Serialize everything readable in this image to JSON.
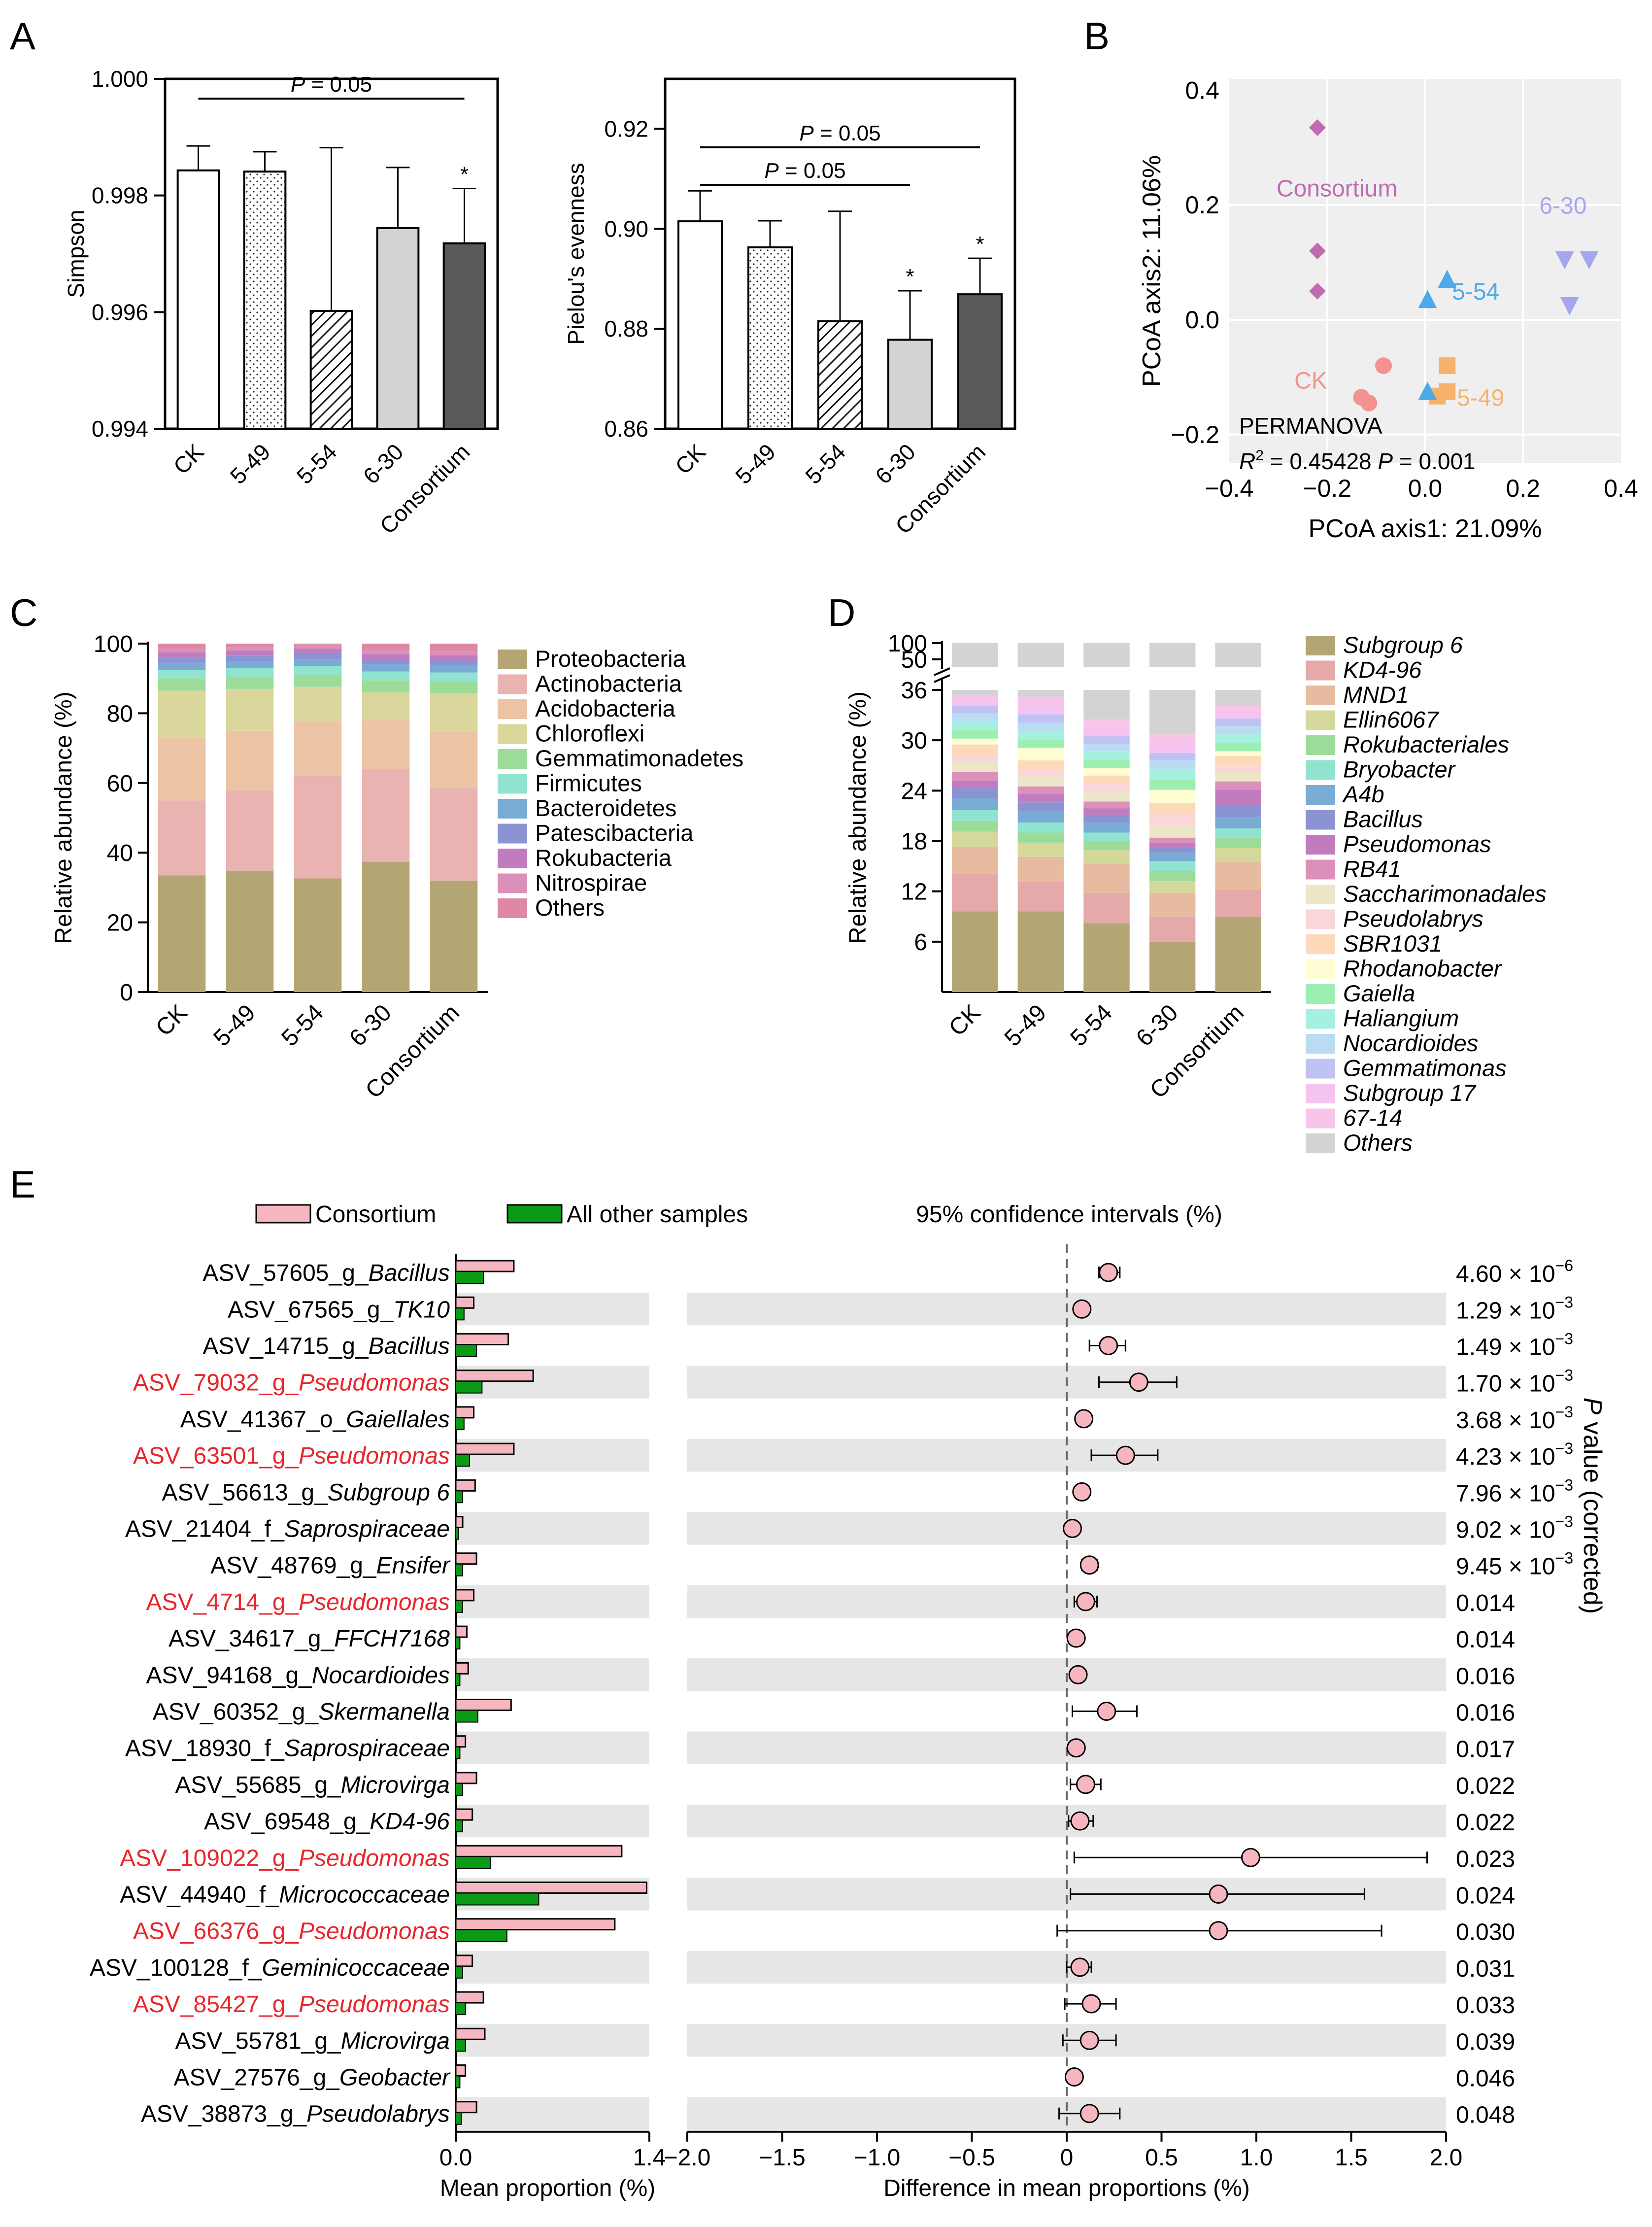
{
  "colors": {
    "ck": "#f4928f",
    "m549": "#f6b26b",
    "m554": "#4fa9e8",
    "m630": "#a6a6f0",
    "cons": "#c06ab0",
    "pink": "#f5b6bf",
    "green": "#0a9a16",
    "red": "#e8262b",
    "band": "#e6e6e6"
  },
  "chart_data": [
    {
      "panel": "A",
      "type": "bar",
      "categories": [
        "CK",
        "5-49",
        "5-54",
        "6-30",
        "Consortium"
      ],
      "ylabel": "Simpson",
      "ylim": [
        0.994,
        1.0
      ],
      "yticks": [
        "0.994",
        "0.996",
        "0.998",
        "1.000"
      ],
      "values": [
        0.99843,
        0.99841,
        0.99602,
        0.99744,
        0.99718
      ],
      "errors": [
        0.00042,
        0.00034,
        0.0028,
        0.00104,
        0.00094
      ],
      "significance": [
        "",
        "",
        "",
        "",
        "*"
      ],
      "annotations": [
        {
          "text": "P = 0.05",
          "from": 0,
          "to": 4,
          "y": 0.99966
        }
      ]
    },
    {
      "panel": "A",
      "type": "bar",
      "categories": [
        "CK",
        "5-49",
        "5-54",
        "6-30",
        "Consortium"
      ],
      "ylabel": "Pielou's evenness",
      "ylim": [
        0.86,
        0.93
      ],
      "yticks": [
        "0.86",
        "0.88",
        "0.90",
        "0.92"
      ],
      "values": [
        0.9015,
        0.8963,
        0.8815,
        0.8778,
        0.8869
      ],
      "errors": [
        0.0061,
        0.0053,
        0.022,
        0.0098,
        0.0072
      ],
      "significance": [
        "",
        "",
        "",
        "*",
        "*"
      ],
      "annotations": [
        {
          "text": "P = 0.05",
          "from": 0,
          "to": 4,
          "y": 0.9163
        },
        {
          "text": "P = 0.05",
          "from": 0,
          "to": 3,
          "y": 0.9088
        }
      ]
    },
    {
      "panel": "B",
      "type": "scatter",
      "xlabel": "PCoA axis1: 21.09%",
      "ylabel": "PCoA axis2: 11.06%",
      "xlim": [
        -0.4,
        0.4
      ],
      "ylim": [
        -0.25,
        0.42
      ],
      "xticks": [
        "−0.4",
        "−0.2",
        "0.0",
        "0.2",
        "0.4"
      ],
      "yticks": [
        "−0.2",
        "0.0",
        "0.2",
        "0.4"
      ],
      "stats_line1": "PERMANOVA",
      "stats_r2": "= 0.45428",
      "stats_p": "P = 0.001",
      "series": [
        {
          "name": "CK",
          "shape": "circle",
          "points": [
            [
              -0.085,
              -0.08
            ],
            [
              -0.13,
              -0.135
            ],
            [
              -0.115,
              -0.145
            ]
          ]
        },
        {
          "name": "5-49",
          "shape": "square",
          "points": [
            [
              0.045,
              -0.08
            ],
            [
              0.045,
              -0.125
            ],
            [
              0.025,
              -0.133
            ]
          ]
        },
        {
          "name": "5-54",
          "shape": "triangle-up",
          "points": [
            [
              0.045,
              0.07
            ],
            [
              0.005,
              0.035
            ],
            [
              0.005,
              -0.125
            ]
          ]
        },
        {
          "name": "6-30",
          "shape": "triangle-down",
          "points": [
            [
              0.285,
              0.105
            ],
            [
              0.335,
              0.105
            ],
            [
              0.295,
              0.025
            ]
          ]
        },
        {
          "name": "Consortium",
          "shape": "diamond",
          "points": [
            [
              -0.22,
              0.335
            ],
            [
              -0.22,
              0.12
            ],
            [
              -0.22,
              0.05
            ]
          ]
        }
      ]
    },
    {
      "panel": "C",
      "type": "bar",
      "stacked": true,
      "categories": [
        "CK",
        "5-49",
        "5-54",
        "6-30",
        "Consortium"
      ],
      "ylabel": "Relative abundance (%)",
      "ylim": [
        0,
        100
      ],
      "yticks": [
        "0",
        "20",
        "40",
        "60",
        "80",
        "100"
      ],
      "series": [
        {
          "name": "Proteobacteria",
          "color": "#b4a674",
          "values": [
            33.5,
            34.7,
            32.6,
            37.4,
            32.0
          ]
        },
        {
          "name": "Actinobacteria",
          "color": "#e9b3b1",
          "values": [
            21.5,
            23.0,
            29.4,
            26.6,
            26.5
          ]
        },
        {
          "name": "Acidobacteria",
          "color": "#edc3a6",
          "values": [
            18.0,
            17.3,
            15.6,
            14.0,
            16.2
          ]
        },
        {
          "name": "Chloroflexi",
          "color": "#dad79c",
          "values": [
            13.5,
            12.0,
            10.0,
            8.0,
            11.0
          ]
        },
        {
          "name": "Gemmatimonadetes",
          "color": "#9ddb9b",
          "values": [
            3.5,
            3.5,
            3.5,
            3.5,
            3.5
          ]
        },
        {
          "name": "Firmicutes",
          "color": "#8fe3cf",
          "values": [
            2.5,
            2.5,
            2.5,
            2.5,
            2.5
          ]
        },
        {
          "name": "Bacteroidetes",
          "color": "#79acd5",
          "values": [
            2.0,
            2.0,
            2.0,
            2.0,
            2.0
          ]
        },
        {
          "name": "Patescibacteria",
          "color": "#8b93d3",
          "values": [
            1.5,
            1.5,
            1.5,
            1.5,
            1.5
          ]
        },
        {
          "name": "Rokubacteria",
          "color": "#c17bbf",
          "values": [
            1.5,
            1.5,
            1.5,
            1.5,
            1.5
          ]
        },
        {
          "name": "Nitrospirae",
          "color": "#db90ba",
          "values": [
            1.0,
            1.0,
            1.0,
            1.0,
            1.0
          ]
        },
        {
          "name": "Others",
          "color": "#de88a4",
          "values": [
            1.5,
            1.0,
            0.4,
            2.0,
            2.3
          ]
        }
      ]
    },
    {
      "panel": "D",
      "type": "bar",
      "stacked": true,
      "broken_axis": true,
      "categories": [
        "CK",
        "5-49",
        "5-54",
        "6-30",
        "Consortium"
      ],
      "ylabel": "Relative abundance (%)",
      "yticks": [
        "6",
        "12",
        "18",
        "24",
        "30",
        "36",
        "50",
        "100"
      ],
      "legend_italic": true,
      "series": [
        {
          "name": "Subgroup 6",
          "color": "#b4a674",
          "values": [
            9.6,
            9.6,
            8.2,
            6.0,
            9.0
          ]
        },
        {
          "name": "KD4-96",
          "color": "#e5a9a9",
          "values": [
            4.5,
            3.5,
            3.6,
            3.0,
            3.2
          ]
        },
        {
          "name": "MND1",
          "color": "#e7bba0",
          "values": [
            3.2,
            3.0,
            3.5,
            2.8,
            3.3
          ]
        },
        {
          "name": "Ellin6067",
          "color": "#d4d99b",
          "values": [
            1.8,
            1.7,
            1.6,
            1.4,
            1.7
          ]
        },
        {
          "name": "Rokubacteriales",
          "color": "#9ddb9b",
          "values": [
            1.3,
            1.2,
            1.1,
            1.2,
            1.2
          ]
        },
        {
          "name": "Bryobacter",
          "color": "#8fe3cf",
          "values": [
            1.3,
            1.2,
            1.0,
            1.2,
            1.1
          ]
        },
        {
          "name": "A4b",
          "color": "#79acd5",
          "values": [
            1.4,
            1.3,
            1.2,
            1.0,
            1.3
          ]
        },
        {
          "name": "Bacillus",
          "color": "#8b93d3",
          "values": [
            1.2,
            1.1,
            0.9,
            0.6,
            1.5
          ]
        },
        {
          "name": "Pseudomonas",
          "color": "#c17bbf",
          "values": [
            0.9,
            1.0,
            0.8,
            0.6,
            1.8
          ]
        },
        {
          "name": "RB41",
          "color": "#db90ba",
          "values": [
            1.0,
            0.9,
            0.8,
            0.6,
            1.0
          ]
        },
        {
          "name": "Saccharimonadales",
          "color": "#ece6c9",
          "values": [
            1.2,
            1.2,
            1.1,
            1.5,
            1.1
          ]
        },
        {
          "name": "Pseudolabrys",
          "color": "#fbd6d9",
          "values": [
            0.8,
            0.9,
            1.0,
            1.3,
            0.8
          ]
        },
        {
          "name": "SBR1031",
          "color": "#fdd8b9",
          "values": [
            1.3,
            1.0,
            1.0,
            1.3,
            1.1
          ]
        },
        {
          "name": "Rhodanobacter",
          "color": "#fefdd3",
          "values": [
            0.7,
            1.5,
            0.9,
            1.6,
            0.6
          ]
        },
        {
          "name": "Gaiella",
          "color": "#9cefb1",
          "values": [
            1.0,
            1.0,
            1.0,
            1.2,
            1.0
          ]
        },
        {
          "name": "Haliangium",
          "color": "#a6f0df",
          "values": [
            1.0,
            1.0,
            1.0,
            1.2,
            1.0
          ]
        },
        {
          "name": "Nocardioides",
          "color": "#b9dcf3",
          "values": [
            1.0,
            1.0,
            0.9,
            1.1,
            1.0
          ]
        },
        {
          "name": "Gemmatimonas",
          "color": "#c0c2f4",
          "values": [
            0.9,
            1.0,
            0.9,
            0.9,
            0.9
          ]
        },
        {
          "name": "Subgroup 17",
          "color": "#f4c3f0",
          "values": [
            0.7,
            1.0,
            1.0,
            1.1,
            0.8
          ]
        },
        {
          "name": "67-14",
          "color": "#f8c5e8",
          "values": [
            0.6,
            1.0,
            1.0,
            1.1,
            0.7
          ]
        },
        {
          "name": "Others",
          "color": "#d3d3d3",
          "values": [
            64.6,
            64.4,
            68.4,
            67.0,
            65.1
          ]
        }
      ]
    },
    {
      "panel": "E",
      "type": "bar+errorbar",
      "legend": [
        "Consortium",
        "All other samples"
      ],
      "ci_title": "95% confidence intervals (%)",
      "xlabel_left": "Mean proportion (%)",
      "xlabel_right": "Difference in mean proportions (%)",
      "right_axis_label": "value (corrected)",
      "right_axis_label_p": "P",
      "left_xlim": [
        0,
        1.4
      ],
      "left_ticks": [
        "0.0",
        "1.4"
      ],
      "right_xlim": [
        -2,
        2
      ],
      "right_ticks": [
        "−2.0",
        "−1.5",
        "−1.0",
        "−0.5",
        "0",
        "0.5",
        "1.0",
        "1.5",
        "2.0"
      ],
      "rows": [
        {
          "pre": "ASV_57605_g_",
          "taxon": "Bacillus",
          "red": false,
          "cons": 0.42,
          "other": 0.2,
          "diff": 0.22,
          "lo": 0.17,
          "hi": 0.28,
          "pv": "4.60 × 10",
          "pe": "−6"
        },
        {
          "pre": "ASV_67565_g_",
          "taxon": "TK10",
          "red": false,
          "cons": 0.13,
          "other": 0.06,
          "diff": 0.08,
          "lo": 0.08,
          "hi": 0.08,
          "pv": "1.29 × 10",
          "pe": "−3"
        },
        {
          "pre": "ASV_14715_g_",
          "taxon": "Bacillus",
          "red": false,
          "cons": 0.38,
          "other": 0.15,
          "diff": 0.22,
          "lo": 0.12,
          "hi": 0.31,
          "pv": "1.49 × 10",
          "pe": "−3"
        },
        {
          "pre": "ASV_79032_g_",
          "taxon": "Pseudomonas",
          "red": true,
          "cons": 0.56,
          "other": 0.19,
          "diff": 0.38,
          "lo": 0.17,
          "hi": 0.58,
          "pv": "1.70 × 10",
          "pe": "−3"
        },
        {
          "pre": "ASV_41367_o_",
          "taxon": "Gaiellales",
          "red": false,
          "cons": 0.13,
          "other": 0.06,
          "diff": 0.09,
          "lo": 0.09,
          "hi": 0.09,
          "pv": "3.68 × 10",
          "pe": "−3"
        },
        {
          "pre": "ASV_63501_g_",
          "taxon": "Pseudomonas",
          "red": true,
          "cons": 0.42,
          "other": 0.1,
          "diff": 0.31,
          "lo": 0.13,
          "hi": 0.48,
          "pv": "4.23 × 10",
          "pe": "−3"
        },
        {
          "pre": "ASV_56613_g_",
          "taxon": "Subgroup 6",
          "red": false,
          "cons": 0.14,
          "other": 0.05,
          "diff": 0.08,
          "lo": 0.08,
          "hi": 0.08,
          "pv": "7.96 × 10",
          "pe": "−3"
        },
        {
          "pre": "ASV_21404_f_",
          "taxon": "Saprospiraceae",
          "red": false,
          "cons": 0.05,
          "other": 0.02,
          "diff": 0.03,
          "lo": 0.03,
          "hi": 0.03,
          "pv": "9.02 × 10",
          "pe": "−3"
        },
        {
          "pre": "ASV_48769_g_",
          "taxon": "Ensifer",
          "red": false,
          "cons": 0.15,
          "other": 0.05,
          "diff": 0.12,
          "lo": 0.08,
          "hi": 0.16,
          "pv": "9.45 × 10",
          "pe": "−3"
        },
        {
          "pre": "ASV_4714_g_",
          "taxon": "Pseudomonas",
          "red": true,
          "cons": 0.13,
          "other": 0.05,
          "diff": 0.1,
          "lo": 0.04,
          "hi": 0.16,
          "pv": "0.014",
          "pe": ""
        },
        {
          "pre": "ASV_34617_g_",
          "taxon": "FFCH7168",
          "red": false,
          "cons": 0.08,
          "other": 0.03,
          "diff": 0.05,
          "lo": 0.05,
          "hi": 0.05,
          "pv": "0.014",
          "pe": ""
        },
        {
          "pre": "ASV_94168_g_",
          "taxon": "Nocardioides",
          "red": false,
          "cons": 0.09,
          "other": 0.03,
          "diff": 0.06,
          "lo": 0.06,
          "hi": 0.06,
          "pv": "0.016",
          "pe": ""
        },
        {
          "pre": "ASV_60352_g_",
          "taxon": "Skermanella",
          "red": false,
          "cons": 0.4,
          "other": 0.16,
          "diff": 0.21,
          "lo": 0.03,
          "hi": 0.37,
          "pv": "0.016",
          "pe": ""
        },
        {
          "pre": "ASV_18930_f_",
          "taxon": "Saprospiraceae",
          "red": false,
          "cons": 0.07,
          "other": 0.03,
          "diff": 0.05,
          "lo": 0.05,
          "hi": 0.05,
          "pv": "0.017",
          "pe": ""
        },
        {
          "pre": "ASV_55685_g_",
          "taxon": "Microvirga",
          "red": false,
          "cons": 0.15,
          "other": 0.05,
          "diff": 0.1,
          "lo": 0.02,
          "hi": 0.18,
          "pv": "0.022",
          "pe": ""
        },
        {
          "pre": "ASV_69548_g_",
          "taxon": "KD4-96",
          "red": false,
          "cons": 0.12,
          "other": 0.05,
          "diff": 0.07,
          "lo": 0.01,
          "hi": 0.14,
          "pv": "0.022",
          "pe": ""
        },
        {
          "pre": "ASV_109022_g_",
          "taxon": "Pseudomonas",
          "red": true,
          "cons": 1.2,
          "other": 0.25,
          "diff": 0.97,
          "lo": 0.04,
          "hi": 1.9,
          "pv": "0.023",
          "pe": ""
        },
        {
          "pre": "ASV_44940_f_",
          "taxon": "Micrococcaceae",
          "red": false,
          "cons": 1.38,
          "other": 0.6,
          "diff": 0.8,
          "lo": 0.02,
          "hi": 1.57,
          "pv": "0.024",
          "pe": ""
        },
        {
          "pre": "ASV_66376_g_",
          "taxon": "Pseudomonas",
          "red": true,
          "cons": 1.15,
          "other": 0.37,
          "diff": 0.8,
          "lo": -0.05,
          "hi": 1.66,
          "pv": "0.030",
          "pe": ""
        },
        {
          "pre": "ASV_100128_f_",
          "taxon": "Geminicoccaceae",
          "red": false,
          "cons": 0.12,
          "other": 0.05,
          "diff": 0.07,
          "lo": 0.0,
          "hi": 0.13,
          "pv": "0.031",
          "pe": ""
        },
        {
          "pre": "ASV_85427_g_",
          "taxon": "Pseudomonas",
          "red": true,
          "cons": 0.2,
          "other": 0.07,
          "diff": 0.13,
          "lo": -0.01,
          "hi": 0.26,
          "pv": "0.033",
          "pe": ""
        },
        {
          "pre": "ASV_55781_g_",
          "taxon": "Microvirga",
          "red": false,
          "cons": 0.21,
          "other": 0.07,
          "diff": 0.12,
          "lo": -0.02,
          "hi": 0.26,
          "pv": "0.039",
          "pe": ""
        },
        {
          "pre": "ASV_27576_g_",
          "taxon": "Geobacter",
          "red": false,
          "cons": 0.07,
          "other": 0.03,
          "diff": 0.04,
          "lo": 0.04,
          "hi": 0.04,
          "pv": "0.046",
          "pe": ""
        },
        {
          "pre": "ASV_38873_g_",
          "taxon": "Pseudolabrys",
          "red": false,
          "cons": 0.15,
          "other": 0.04,
          "diff": 0.12,
          "lo": -0.04,
          "hi": 0.28,
          "pv": "0.048",
          "pe": ""
        }
      ]
    }
  ],
  "labels": {
    "A": "A",
    "B": "B",
    "C": "C",
    "D": "D",
    "E": "E"
  }
}
